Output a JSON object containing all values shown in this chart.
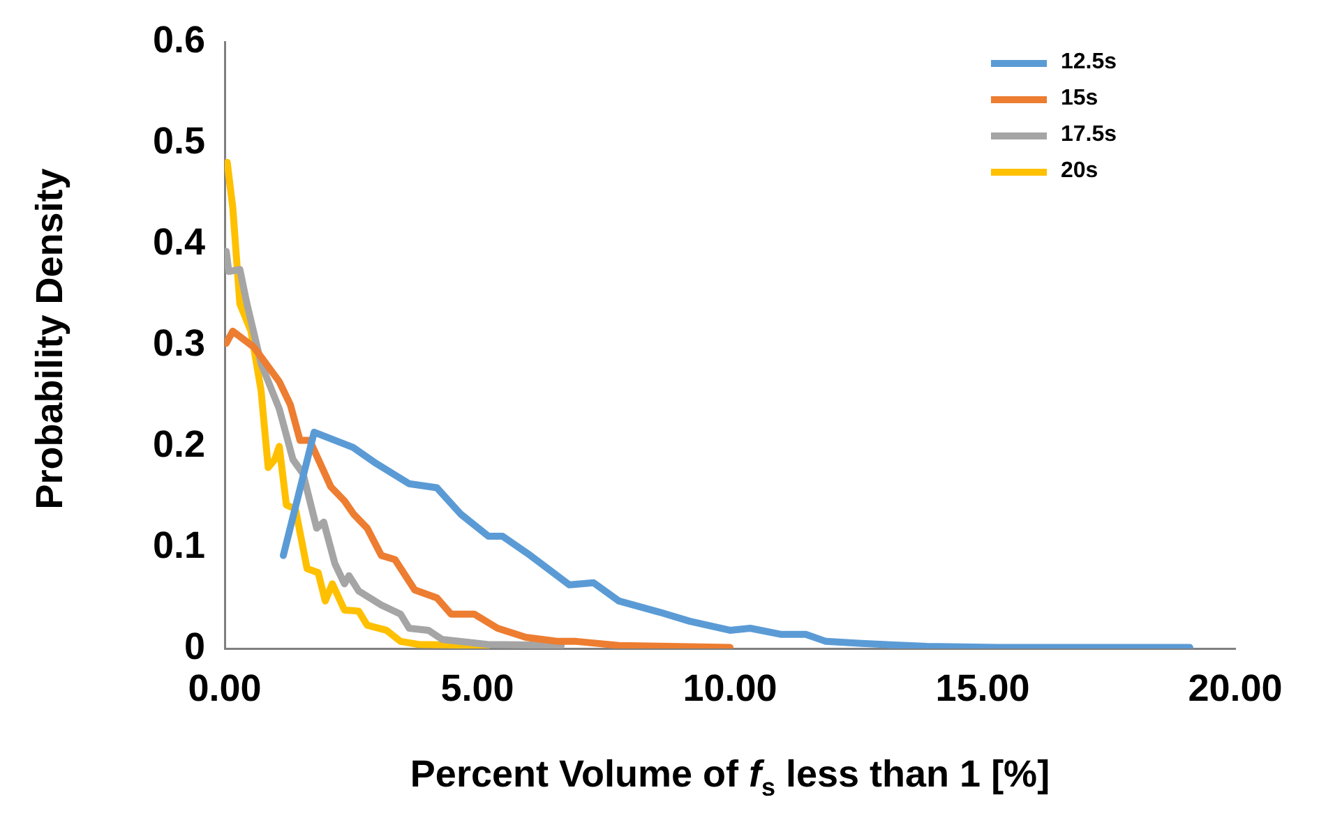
{
  "chart_data": {
    "type": "line",
    "xlabel": "Percent Volume of f$_{s}$ less than 1 [%]",
    "ylabel": "Probability Density",
    "xlim": [
      0,
      20
    ],
    "xticks": [
      {
        "value": 0,
        "label": "0.00"
      },
      {
        "value": 5,
        "label": "5.00"
      },
      {
        "value": 10,
        "label": "10.00"
      },
      {
        "value": 15,
        "label": "15.00"
      },
      {
        "value": 20,
        "label": "20.00"
      }
    ],
    "ylim": [
      0,
      0.6
    ],
    "yticks": [
      0,
      0.1,
      0.2,
      0.3,
      0.4,
      0.5,
      0.6
    ],
    "grid": false,
    "legend": "top right",
    "marker": "none",
    "line_style": "solid",
    "series": [
      {
        "name": "12.5s",
        "color": "#5b9bd5",
        "x": [
          1.16,
          1.77,
          2.54,
          3.0,
          3.65,
          4.2,
          4.67,
          5.22,
          5.5,
          6.05,
          6.5,
          6.82,
          7.3,
          7.8,
          8.6,
          9.2,
          10.0,
          10.4,
          11.0,
          11.5,
          11.9,
          12.6,
          13.9,
          15.3,
          17.0,
          19.1
        ],
        "values": [
          0.092,
          0.214,
          0.199,
          0.183,
          0.163,
          0.159,
          0.133,
          0.111,
          0.111,
          0.092,
          0.075,
          0.063,
          0.065,
          0.047,
          0.036,
          0.027,
          0.018,
          0.02,
          0.014,
          0.014,
          0.007,
          0.005,
          0.002,
          0.001,
          0.001,
          0.001
        ]
      },
      {
        "name": "15s",
        "color": "#ed7d31",
        "x": [
          0.03,
          0.16,
          0.58,
          1.08,
          1.3,
          1.49,
          1.68,
          2.1,
          2.37,
          2.55,
          2.82,
          3.1,
          3.37,
          3.76,
          4.2,
          4.48,
          4.94,
          5.4,
          5.96,
          6.6,
          6.96,
          7.8,
          10.0
        ],
        "values": [
          0.302,
          0.314,
          0.298,
          0.264,
          0.241,
          0.206,
          0.206,
          0.16,
          0.146,
          0.133,
          0.119,
          0.092,
          0.088,
          0.058,
          0.05,
          0.034,
          0.034,
          0.02,
          0.011,
          0.007,
          0.007,
          0.003,
          0.001
        ]
      },
      {
        "name": "17.5s",
        "color": "#a5a5a5",
        "x": [
          0.03,
          0.08,
          0.3,
          0.44,
          0.72,
          1.08,
          1.35,
          1.55,
          1.82,
          1.96,
          2.18,
          2.37,
          2.46,
          2.65,
          3.1,
          3.48,
          3.65,
          4.03,
          4.3,
          5.2,
          6.66
        ],
        "values": [
          0.393,
          0.373,
          0.375,
          0.341,
          0.282,
          0.237,
          0.187,
          0.173,
          0.119,
          0.125,
          0.084,
          0.064,
          0.072,
          0.057,
          0.043,
          0.034,
          0.02,
          0.018,
          0.009,
          0.004,
          0.003
        ]
      },
      {
        "name": "20s",
        "color": "#ffc000",
        "x": [
          0.05,
          0.16,
          0.3,
          0.52,
          0.72,
          0.86,
          0.99,
          1.08,
          1.22,
          1.4,
          1.63,
          1.85,
          1.99,
          2.13,
          2.37,
          2.65,
          2.82,
          3.2,
          3.48,
          3.84,
          5.2
        ],
        "values": [
          0.481,
          0.436,
          0.341,
          0.314,
          0.255,
          0.179,
          0.187,
          0.2,
          0.142,
          0.138,
          0.079,
          0.075,
          0.047,
          0.064,
          0.038,
          0.037,
          0.023,
          0.018,
          0.007,
          0.004,
          0.003
        ]
      }
    ]
  }
}
